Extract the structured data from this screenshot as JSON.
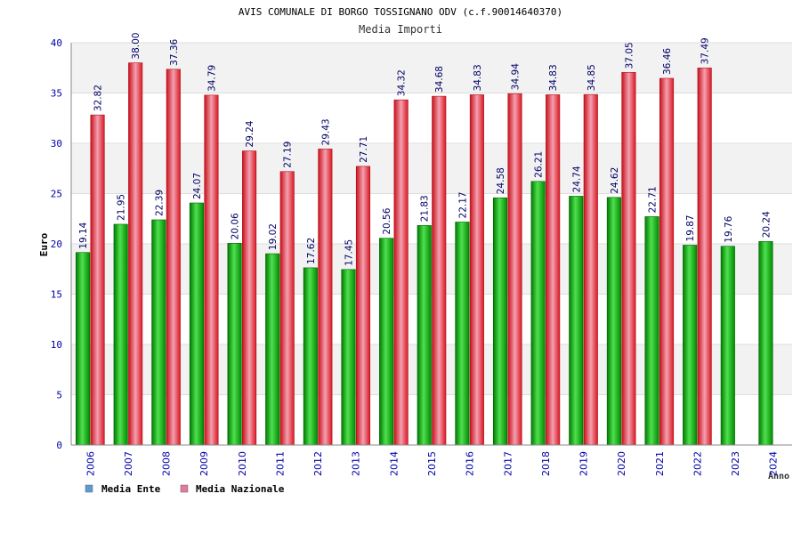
{
  "chart_data": {
    "type": "bar",
    "title": "AVIS COMUNALE DI BORGO TOSSIGNANO ODV (c.f.90014640370)",
    "subtitle": "Media Importi",
    "xlabel": "Anno",
    "ylabel": "Euro",
    "ylim": [
      0,
      40
    ],
    "yticks": [
      0,
      5,
      10,
      15,
      20,
      25,
      30,
      35,
      40
    ],
    "categories": [
      "2006",
      "2007",
      "2008",
      "2009",
      "2010",
      "2011",
      "2012",
      "2013",
      "2014",
      "2015",
      "2016",
      "2017",
      "2018",
      "2019",
      "2020",
      "2021",
      "2022",
      "2023",
      "2024"
    ],
    "series": [
      {
        "name": "Media Ente",
        "legend_color": "#5b9bd5",
        "bar_color": "#00b000",
        "values": [
          19.14,
          21.95,
          22.39,
          24.07,
          20.06,
          19.02,
          17.62,
          17.45,
          20.56,
          21.83,
          22.17,
          24.58,
          26.21,
          24.74,
          24.62,
          22.71,
          19.87,
          19.76,
          20.24
        ],
        "labels": [
          "19.14",
          "21.95",
          "22.39",
          "24.07",
          "20.06",
          "19.02",
          "17.62",
          "17.45",
          "20.56",
          "21.83",
          "22.17",
          "24.58",
          "26.21",
          "24.74",
          "24.62",
          "22.71",
          "19.87",
          "19.76",
          "20.24"
        ]
      },
      {
        "name": "Media Nazionale",
        "legend_color": "#e07aa0",
        "bar_color": "#e0202a",
        "values": [
          32.82,
          38.0,
          37.36,
          34.79,
          29.24,
          27.19,
          29.43,
          27.71,
          34.32,
          34.68,
          34.83,
          34.94,
          34.83,
          34.85,
          37.05,
          36.46,
          37.49,
          null,
          null
        ],
        "labels": [
          "32.82",
          "38.00",
          "37.36",
          "34.79",
          "29.24",
          "27.19",
          "29.43",
          "27.71",
          "34.32",
          "34.68",
          "34.83",
          "34.94",
          "34.83",
          "34.85",
          "37.05",
          "36.46",
          "37.49",
          null,
          null
        ]
      }
    ],
    "grid": true,
    "legend": "bottom-left"
  }
}
